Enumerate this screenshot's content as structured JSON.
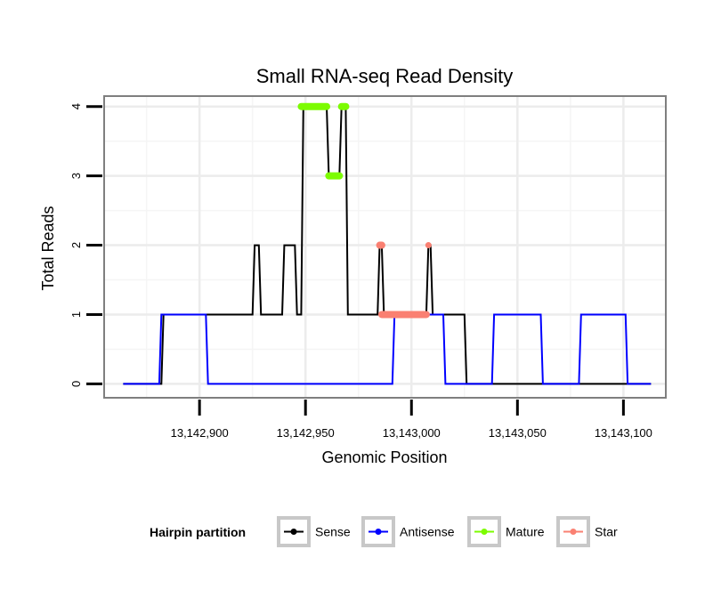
{
  "chart_data": {
    "type": "line",
    "title": "Small RNA-seq Read Density",
    "xlabel": "Genomic Position",
    "ylabel": "Total Reads",
    "xlim": [
      13142855,
      13143120
    ],
    "ylim": [
      -0.2,
      4.15
    ],
    "x_ticks": [
      13142900,
      13142950,
      13143000,
      13143050,
      13143100
    ],
    "x_tick_labels": [
      "13,142,900",
      "13,142,950",
      "13,143,000",
      "13,143,050",
      "13,143,100"
    ],
    "y_ticks": [
      0,
      1,
      2,
      3,
      4
    ],
    "y_tick_labels": [
      "0",
      "1",
      "2",
      "3",
      "4"
    ],
    "grid": true,
    "legend": {
      "title": "Hairpin partition",
      "position": "bottom",
      "entries": [
        {
          "name": "Sense",
          "color": "#000000"
        },
        {
          "name": "Antisense",
          "color": "#0000ff"
        },
        {
          "name": "Mature",
          "color": "#7cfc00"
        },
        {
          "name": "Star",
          "color": "#fa8072"
        }
      ]
    },
    "series": [
      {
        "name": "Sense",
        "color": "#000000",
        "x": [
          13142864,
          13142882,
          13142883,
          13142925,
          13142926,
          13142928,
          13142929,
          13142939,
          13142940,
          13142945,
          13142946,
          13142948,
          13142949,
          13142960,
          13142961,
          13142966,
          13142967,
          13142969,
          13142970,
          13142984,
          13142985,
          13142986,
          13142987,
          13143007,
          13143008,
          13143009,
          13143010,
          13143025,
          13143026,
          13143113
        ],
        "y": [
          0,
          0,
          1,
          1,
          2,
          2,
          1,
          1,
          2,
          2,
          1,
          1,
          4,
          4,
          3,
          3,
          4,
          4,
          1,
          1,
          2,
          2,
          1,
          1,
          2,
          2,
          1,
          1,
          0,
          0
        ]
      },
      {
        "name": "Antisense",
        "color": "#0000ff",
        "x": [
          13142864,
          13142881,
          13142882,
          13142903,
          13142904,
          13142991,
          13142992,
          13143015,
          13143016,
          13143038,
          13143039,
          13143061,
          13143062,
          13143079,
          13143080,
          13143101,
          13143102,
          13143113
        ],
        "y": [
          0,
          0,
          1,
          1,
          0,
          0,
          1,
          1,
          0,
          0,
          1,
          1,
          0,
          0,
          1,
          1,
          0,
          0
        ]
      },
      {
        "name": "Mature",
        "color": "#7cfc00",
        "segments": [
          {
            "x": [
              13142948,
              13142960
            ],
            "y": [
              4,
              4
            ]
          },
          {
            "x": [
              13142961,
              13142966
            ],
            "y": [
              3,
              3
            ]
          },
          {
            "x": [
              13142967,
              13142969
            ],
            "y": [
              4,
              4
            ]
          }
        ]
      },
      {
        "name": "Star",
        "color": "#fa8072",
        "segments": [
          {
            "x": [
              13142985,
              13142986
            ],
            "y": [
              2,
              2
            ]
          },
          {
            "x": [
              13142986,
              13143007
            ],
            "y": [
              1,
              1
            ]
          },
          {
            "x": [
              13143008,
              13143008
            ],
            "y": [
              2,
              2
            ]
          }
        ]
      }
    ]
  }
}
